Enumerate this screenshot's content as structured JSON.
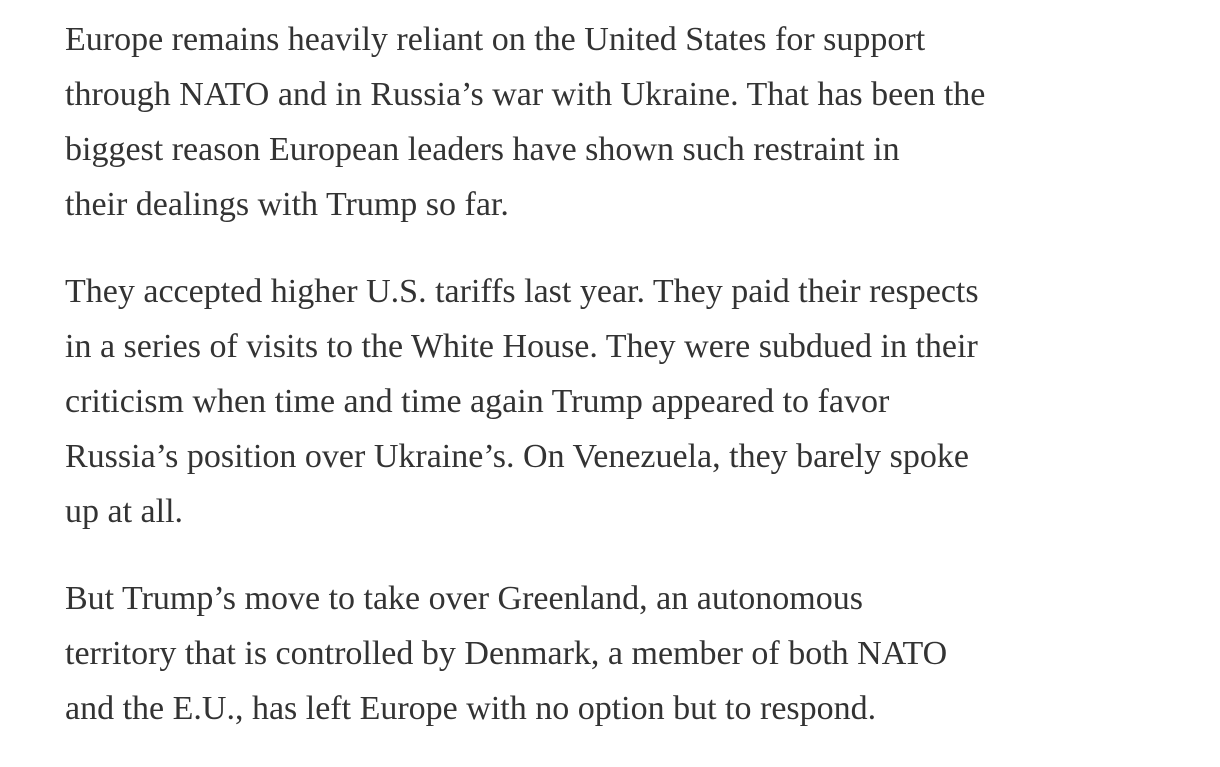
{
  "article": {
    "text_color": "#333333",
    "background_color": "#ffffff",
    "paragraphs": [
      {
        "lines": [
          "Europe remains heavily reliant on the United States for support",
          "through NATO and in Russia’s war with Ukraine. That has been the",
          "biggest reason European leaders have shown such restraint in",
          "their dealings with Trump so far."
        ]
      },
      {
        "lines": [
          "They accepted higher U.S. tariffs last year. They paid their respects",
          "in a series of visits to the White House. They were subdued in their",
          "criticism when time and time again Trump appeared to favor",
          "Russia’s position over Ukraine’s. On Venezuela, they barely spoke",
          "up at all."
        ]
      },
      {
        "lines": [
          "But Trump’s move to take over Greenland, an autonomous",
          "territory that is controlled by Denmark, a member of both NATO",
          "and the E.U., has left Europe with no option but to respond."
        ]
      }
    ]
  }
}
